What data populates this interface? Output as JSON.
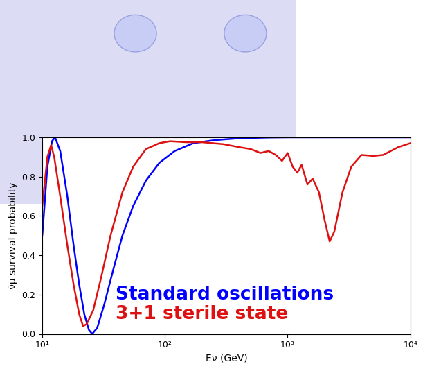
{
  "chart_data": {
    "type": "line",
    "x_label": "Eν (GeV)",
    "y_label": "ν̄μ survival probability",
    "log": "x",
    "xlim": [
      10,
      10000
    ],
    "ylim": [
      0.0,
      1.0
    ],
    "xticks": [
      {
        "value": 10,
        "label": "10¹"
      },
      {
        "value": 100,
        "label": "10²"
      },
      {
        "value": 1000,
        "label": "10³"
      },
      {
        "value": 10000,
        "label": "10⁴"
      }
    ],
    "yticks": [
      {
        "value": 0.0,
        "label": "0.0"
      },
      {
        "value": 0.2,
        "label": "0.2"
      },
      {
        "value": 0.4,
        "label": "0.4"
      },
      {
        "value": 0.6,
        "label": "0.6"
      },
      {
        "value": 0.8,
        "label": "0.8"
      },
      {
        "value": 1.0,
        "label": "1.0"
      }
    ],
    "series": [
      {
        "name": "Standard oscillations",
        "color": "#0000ff",
        "x": [
          10,
          11,
          12,
          12.7,
          14,
          16,
          18,
          20,
          22,
          24,
          25.5,
          28,
          32,
          38,
          45,
          55,
          70,
          90,
          120,
          170,
          250,
          400,
          700,
          1000,
          10000
        ],
        "values": [
          0.5,
          0.85,
          0.98,
          1.0,
          0.93,
          0.7,
          0.45,
          0.25,
          0.1,
          0.02,
          0.0,
          0.03,
          0.15,
          0.33,
          0.5,
          0.65,
          0.78,
          0.87,
          0.93,
          0.97,
          0.985,
          0.995,
          0.999,
          1.0,
          1.0
        ]
      },
      {
        "name": "3+1 sterile state",
        "color": "#dd1111",
        "x": [
          10,
          11,
          11.8,
          12.5,
          14,
          16,
          18,
          20,
          21.5,
          23,
          26,
          30,
          36,
          45,
          55,
          70,
          90,
          110,
          150,
          200,
          300,
          400,
          500,
          600,
          700,
          800,
          900,
          1000,
          1100,
          1200,
          1300,
          1450,
          1600,
          1800,
          2000,
          2200,
          2400,
          2800,
          3300,
          4000,
          5000,
          6000,
          8000,
          10000
        ],
        "values": [
          0.65,
          0.9,
          0.96,
          0.9,
          0.7,
          0.45,
          0.25,
          0.1,
          0.04,
          0.05,
          0.12,
          0.28,
          0.5,
          0.72,
          0.85,
          0.94,
          0.97,
          0.98,
          0.975,
          0.975,
          0.965,
          0.95,
          0.94,
          0.92,
          0.93,
          0.91,
          0.88,
          0.92,
          0.85,
          0.82,
          0.86,
          0.76,
          0.79,
          0.72,
          0.58,
          0.47,
          0.52,
          0.72,
          0.85,
          0.91,
          0.905,
          0.91,
          0.95,
          0.97
        ]
      }
    ]
  }
}
